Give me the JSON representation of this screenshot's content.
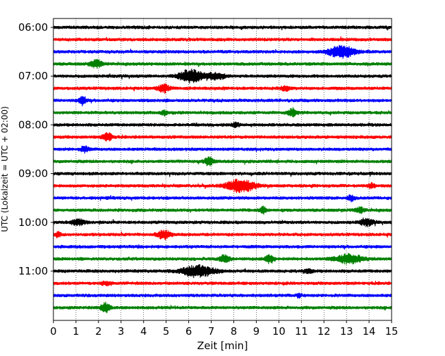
{
  "chart_data": {
    "type": "line",
    "xlabel": "Zeit  [min]",
    "ylabel": "UTC (Lokalzeit = UTC + 02:00)",
    "xlim": [
      0,
      15
    ],
    "x_ticks": [
      "0",
      "1",
      "2",
      "3",
      "4",
      "5",
      "6",
      "7",
      "8",
      "9",
      "10",
      "11",
      "12",
      "13",
      "14",
      "15"
    ],
    "y_tick_labels": [
      "06:00",
      "07:00",
      "08:00",
      "09:00",
      "10:00",
      "11:00"
    ],
    "rows_per_hour": 4,
    "row_minutes": 15,
    "row_count": 24,
    "grid": "vertical dotted at each minute",
    "colors": [
      "#000000",
      "#ff0000",
      "#0000ff",
      "#008000"
    ],
    "events": [
      {
        "row": 2,
        "minute": 12.8,
        "amp": 0.45,
        "width": 0.6
      },
      {
        "row": 3,
        "minute": 1.9,
        "amp": 0.3,
        "width": 0.25
      },
      {
        "row": 4,
        "minute": 6.1,
        "amp": 0.5,
        "width": 0.5
      },
      {
        "row": 4,
        "minute": 7.2,
        "amp": 0.25,
        "width": 0.4
      },
      {
        "row": 5,
        "minute": 4.9,
        "amp": 0.3,
        "width": 0.25
      },
      {
        "row": 5,
        "minute": 10.3,
        "amp": 0.18,
        "width": 0.2
      },
      {
        "row": 6,
        "minute": 1.3,
        "amp": 0.35,
        "width": 0.15
      },
      {
        "row": 7,
        "minute": 10.6,
        "amp": 0.3,
        "width": 0.2
      },
      {
        "row": 7,
        "minute": 4.9,
        "amp": 0.18,
        "width": 0.15
      },
      {
        "row": 8,
        "minute": 8.1,
        "amp": 0.18,
        "width": 0.15
      },
      {
        "row": 9,
        "minute": 2.4,
        "amp": 0.35,
        "width": 0.2
      },
      {
        "row": 10,
        "minute": 1.4,
        "amp": 0.2,
        "width": 0.2
      },
      {
        "row": 11,
        "minute": 6.9,
        "amp": 0.3,
        "width": 0.2
      },
      {
        "row": 13,
        "minute": 8.3,
        "amp": 0.5,
        "width": 0.6
      },
      {
        "row": 13,
        "minute": 14.1,
        "amp": 0.2,
        "width": 0.15
      },
      {
        "row": 14,
        "minute": 13.2,
        "amp": 0.2,
        "width": 0.15
      },
      {
        "row": 15,
        "minute": 9.3,
        "amp": 0.25,
        "width": 0.15
      },
      {
        "row": 15,
        "minute": 13.6,
        "amp": 0.2,
        "width": 0.2
      },
      {
        "row": 16,
        "minute": 1.1,
        "amp": 0.22,
        "width": 0.3
      },
      {
        "row": 16,
        "minute": 13.9,
        "amp": 0.25,
        "width": 0.3
      },
      {
        "row": 17,
        "minute": 4.9,
        "amp": 0.35,
        "width": 0.3
      },
      {
        "row": 17,
        "minute": 0.2,
        "amp": 0.25,
        "width": 0.1
      },
      {
        "row": 19,
        "minute": 7.6,
        "amp": 0.3,
        "width": 0.2
      },
      {
        "row": 19,
        "minute": 9.6,
        "amp": 0.3,
        "width": 0.2
      },
      {
        "row": 19,
        "minute": 13.1,
        "amp": 0.35,
        "width": 0.6
      },
      {
        "row": 20,
        "minute": 6.4,
        "amp": 0.45,
        "width": 0.7
      },
      {
        "row": 20,
        "minute": 11.3,
        "amp": 0.15,
        "width": 0.2
      },
      {
        "row": 21,
        "minute": 2.3,
        "amp": 0.12,
        "width": 0.2
      },
      {
        "row": 22,
        "minute": 10.9,
        "amp": 0.2,
        "width": 0.1
      },
      {
        "row": 23,
        "minute": 2.3,
        "amp": 0.35,
        "width": 0.2
      }
    ]
  }
}
